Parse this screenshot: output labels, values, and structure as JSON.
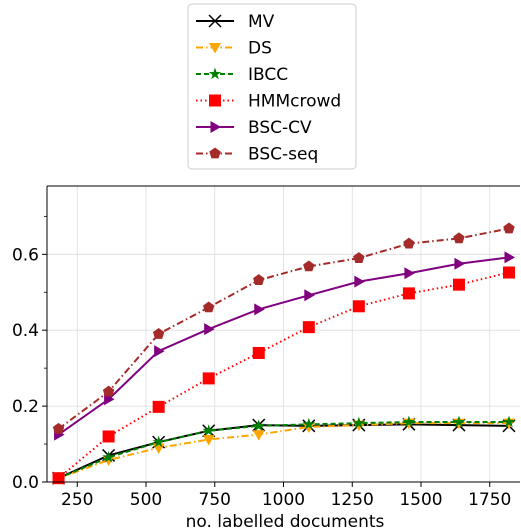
{
  "chart_data": {
    "type": "line",
    "title": "",
    "xlabel": "no. labelled documents",
    "ylabel": "",
    "xlim": [
      140,
      1860
    ],
    "ylim": [
      0.0,
      0.78
    ],
    "x_ticks": [
      250,
      500,
      750,
      1000,
      1250,
      1500,
      1750
    ],
    "y_ticks": [
      0.0,
      0.2,
      0.4,
      0.6
    ],
    "grid": true,
    "legend_position": "top-center (above plot)",
    "x": [
      182,
      364,
      546,
      728,
      910,
      1092,
      1274,
      1456,
      1638,
      1820
    ],
    "series": [
      {
        "name": "MV",
        "color": "#000000",
        "linestyle": "solid",
        "marker": "x",
        "values": [
          0.01,
          0.07,
          0.105,
          0.135,
          0.15,
          0.148,
          0.15,
          0.152,
          0.15,
          0.148
        ]
      },
      {
        "name": "DS",
        "color": "#FFA500",
        "linestyle": "dashdot",
        "marker": "triangle-down",
        "values": [
          0.01,
          0.058,
          0.09,
          0.112,
          0.125,
          0.145,
          0.15,
          0.155,
          0.155,
          0.155
        ]
      },
      {
        "name": "IBCC",
        "color": "#008000",
        "linestyle": "dashed",
        "marker": "star",
        "values": [
          0.01,
          0.065,
          0.105,
          0.135,
          0.148,
          0.152,
          0.155,
          0.158,
          0.158,
          0.158
        ]
      },
      {
        "name": "HMMcrowd",
        "color": "#FF0000",
        "linestyle": "dotted",
        "marker": "square",
        "values": [
          0.01,
          0.12,
          0.198,
          0.273,
          0.34,
          0.408,
          0.463,
          0.497,
          0.52,
          0.552
        ]
      },
      {
        "name": "BSC-CV",
        "color": "#800080",
        "linestyle": "solid",
        "marker": "triangle-right",
        "values": [
          0.125,
          0.218,
          0.345,
          0.403,
          0.455,
          0.492,
          0.528,
          0.55,
          0.575,
          0.592
        ]
      },
      {
        "name": "BSC-seq",
        "color": "#A52A2A",
        "linestyle": "dashdot",
        "marker": "pentagon",
        "values": [
          0.14,
          0.238,
          0.39,
          0.46,
          0.532,
          0.568,
          0.59,
          0.628,
          0.642,
          0.668
        ]
      }
    ]
  }
}
